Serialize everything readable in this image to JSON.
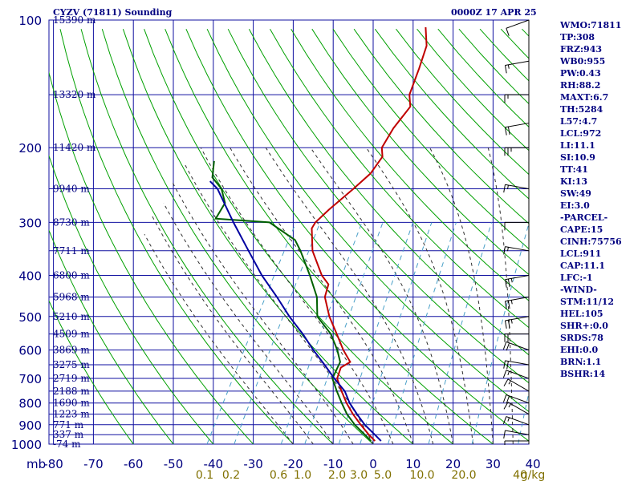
{
  "header": {
    "title": "CYZV (71811) Sounding",
    "datetime": "0000Z 17 APR 25"
  },
  "indices": [
    "WMO:71811",
    "TP:308",
    "FRZ:943",
    "WB0:955",
    "PW:0.43",
    "RH:88.2",
    "MAXT:6.7",
    "TH:5284",
    "L57:4.7",
    "LCL:972",
    "LI:11.1",
    "SI:10.9",
    "TT:41",
    "KI:13",
    "SW:49",
    "EI:3.0",
    "-PARCEL-",
    "CAPE:15",
    "CINH:75756",
    "LCL:911",
    "CAP:11.1",
    "LFC:-1",
    "-WIND-",
    "STM:11/12",
    "HEL:105",
    "SHR+:0.0",
    "SRDS:78",
    "EHI:0.0",
    "BRN:1.1",
    "BSHR:14"
  ],
  "colors": {
    "grid": "#1010a0",
    "dry_adiabat": "#00a000",
    "moist_adiabat": "#303030",
    "mixing_ratio": "#4aa0c8",
    "temperature": "#c00000",
    "dewpoint": "#006000",
    "parcel": "#0000a0",
    "mixing_label": "#807000",
    "wind_barb": "#000000"
  },
  "chart_data": {
    "type": "skew-t",
    "pressure_axis": {
      "unit": "mb",
      "levels": [
        100,
        200,
        300,
        400,
        500,
        600,
        700,
        800,
        900,
        1000
      ],
      "extra_lines": [
        150,
        250,
        350,
        450,
        550,
        650,
        750,
        850,
        950
      ],
      "range": [
        100,
        1000
      ],
      "scale": "log"
    },
    "temperature_axis": {
      "ticks": [
        -80,
        -70,
        -60,
        -50,
        -40,
        -30,
        -20,
        -10,
        0,
        10,
        20,
        30,
        40
      ],
      "tick_labels": [
        "-80",
        "-70",
        "-60",
        "-50",
        "-40",
        "-30",
        "-20",
        "-10",
        "0",
        "10",
        "20",
        "30",
        "40"
      ],
      "range": [
        -80,
        40
      ]
    },
    "height_labels": [
      {
        "p": 100,
        "label": "15390 m"
      },
      {
        "p": 150,
        "label": "13320 m"
      },
      {
        "p": 200,
        "label": "11420 m"
      },
      {
        "p": 250,
        "label": "9940 m"
      },
      {
        "p": 300,
        "label": "8730 m"
      },
      {
        "p": 350,
        "label": "7711 m"
      },
      {
        "p": 400,
        "label": "6800 m"
      },
      {
        "p": 450,
        "label": "5968 m"
      },
      {
        "p": 500,
        "label": "5210 m"
      },
      {
        "p": 550,
        "label": "4509 m"
      },
      {
        "p": 600,
        "label": "3869 m"
      },
      {
        "p": 650,
        "label": "3275 m"
      },
      {
        "p": 700,
        "label": "2719 m"
      },
      {
        "p": 750,
        "label": "2188 m"
      },
      {
        "p": 800,
        "label": "1690 m"
      },
      {
        "p": 850,
        "label": "1223 m"
      },
      {
        "p": 900,
        "label": "771 m"
      },
      {
        "p": 950,
        "label": "337 m"
      },
      {
        "p": 1000,
        "label": "-74 m"
      }
    ],
    "mixing_ratio_labels": [
      "0.1",
      "0.2",
      "0.6",
      "1.0",
      "2.0",
      "3.0",
      "5.0",
      "10.0",
      "20.0",
      "40",
      "g/kg"
    ],
    "mixing_ratio_values": [
      0.1,
      0.2,
      0.6,
      1.0,
      2.0,
      3.0,
      5.0,
      10.0,
      20.0,
      40
    ],
    "series": [
      {
        "key": "temperature",
        "points": [
          [
            983,
            0
          ],
          [
            950,
            -2.5
          ],
          [
            900,
            -6
          ],
          [
            850,
            -9.5
          ],
          [
            800,
            -12.8
          ],
          [
            750,
            -15.8
          ],
          [
            700,
            -18.8
          ],
          [
            660,
            -19.5
          ],
          [
            640,
            -18
          ],
          [
            600,
            -21.5
          ],
          [
            550,
            -25.5
          ],
          [
            500,
            -30
          ],
          [
            450,
            -34
          ],
          [
            420,
            -35
          ],
          [
            400,
            -38
          ],
          [
            350,
            -44
          ],
          [
            310,
            -47.5
          ],
          [
            300,
            -47.5
          ],
          [
            280,
            -46
          ],
          [
            250,
            -43
          ],
          [
            230,
            -41
          ],
          [
            210,
            -40.5
          ],
          [
            200,
            -42
          ],
          [
            180,
            -42
          ],
          [
            160,
            -41
          ],
          [
            150,
            -43
          ],
          [
            130,
            -44.5
          ],
          [
            115,
            -46
          ],
          [
            104,
            -49
          ]
        ]
      },
      {
        "key": "dewpoint",
        "points": [
          [
            983,
            -1
          ],
          [
            950,
            -3.5
          ],
          [
            900,
            -7.5
          ],
          [
            850,
            -11
          ],
          [
            800,
            -14
          ],
          [
            750,
            -17
          ],
          [
            700,
            -20
          ],
          [
            640,
            -20.5
          ],
          [
            600,
            -23
          ],
          [
            550,
            -27
          ],
          [
            500,
            -33
          ],
          [
            450,
            -36
          ],
          [
            400,
            -41
          ],
          [
            350,
            -47
          ],
          [
            330,
            -50
          ],
          [
            300,
            -59
          ],
          [
            294,
            -73
          ],
          [
            270,
            -73
          ],
          [
            250,
            -76
          ],
          [
            235,
            -80
          ],
          [
            215,
            -82
          ]
        ]
      },
      {
        "key": "parcel",
        "points": [
          [
            983,
            1.5
          ],
          [
            950,
            -1
          ],
          [
            900,
            -5
          ],
          [
            850,
            -8.5
          ],
          [
            800,
            -12
          ],
          [
            750,
            -15
          ],
          [
            700,
            -19.5
          ],
          [
            650,
            -24
          ],
          [
            600,
            -29
          ],
          [
            550,
            -34
          ],
          [
            500,
            -40
          ],
          [
            450,
            -46
          ],
          [
            400,
            -53
          ],
          [
            350,
            -60
          ],
          [
            300,
            -68
          ],
          [
            250,
            -77
          ],
          [
            240,
            -80
          ]
        ]
      }
    ],
    "wind_barbs": [
      {
        "p": 983,
        "dir": 270,
        "kt": 5
      },
      {
        "p": 950,
        "dir": 280,
        "kt": 10
      },
      {
        "p": 900,
        "dir": 290,
        "kt": 15
      },
      {
        "p": 850,
        "dir": 300,
        "kt": 15
      },
      {
        "p": 800,
        "dir": 290,
        "kt": 20
      },
      {
        "p": 750,
        "dir": 300,
        "kt": 15
      },
      {
        "p": 700,
        "dir": 290,
        "kt": 15
      },
      {
        "p": 650,
        "dir": 280,
        "kt": 20
      },
      {
        "p": 600,
        "dir": 290,
        "kt": 20
      },
      {
        "p": 550,
        "dir": 270,
        "kt": 20
      },
      {
        "p": 500,
        "dir": 260,
        "kt": 25
      },
      {
        "p": 450,
        "dir": 260,
        "kt": 25
      },
      {
        "p": 400,
        "dir": 260,
        "kt": 25
      },
      {
        "p": 350,
        "dir": 280,
        "kt": 15
      },
      {
        "p": 300,
        "dir": 270,
        "kt": 10
      },
      {
        "p": 250,
        "dir": 280,
        "kt": 15
      },
      {
        "p": 200,
        "dir": 270,
        "kt": 25
      },
      {
        "p": 175,
        "dir": 260,
        "kt": 20
      },
      {
        "p": 150,
        "dir": 270,
        "kt": 15
      },
      {
        "p": 125,
        "dir": 260,
        "kt": 15
      },
      {
        "p": 100,
        "dir": 250,
        "kt": 10
      }
    ]
  }
}
